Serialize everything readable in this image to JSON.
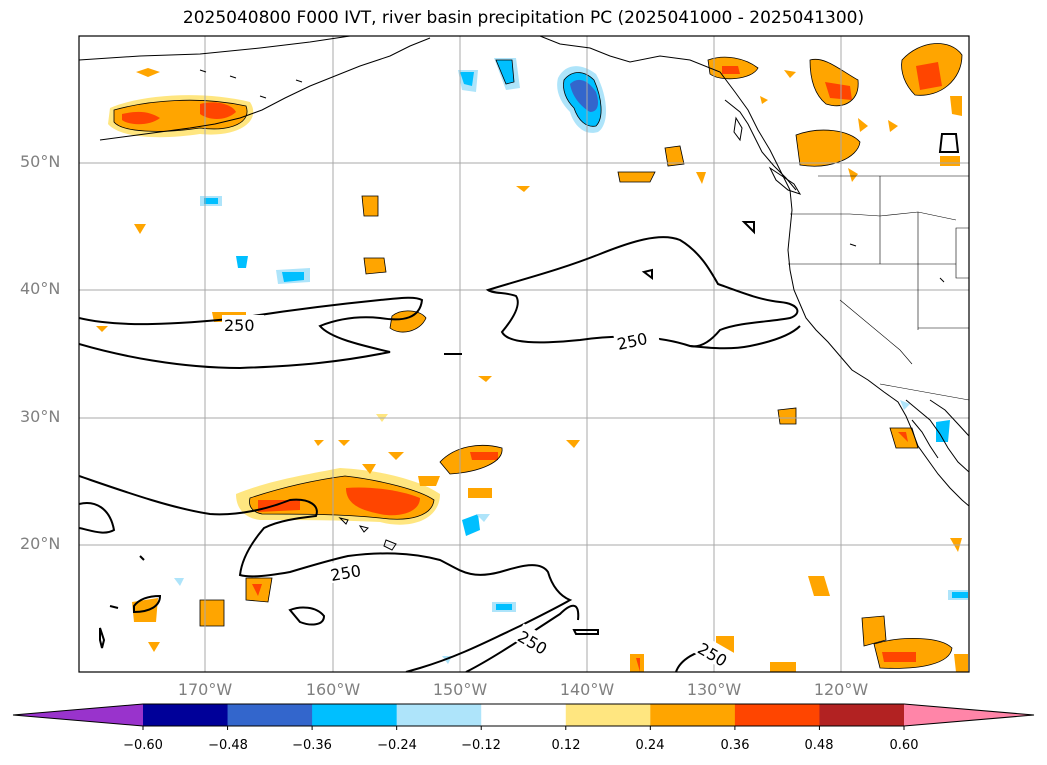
{
  "title": "2025040800 F000 IVT, river basin precipitation PC (2025041000 - 2025041300)",
  "lat_labels": [
    "50°N",
    "40°N",
    "30°N",
    "20°N"
  ],
  "lon_labels": [
    "170°W",
    "160°W",
    "150°W",
    "140°W",
    "130°W",
    "120°W"
  ],
  "contour": {
    "value": 250,
    "label": "250"
  },
  "colorbar": {
    "ticks": [
      "−0.60",
      "−0.48",
      "−0.36",
      "−0.24",
      "−0.12",
      "0.12",
      "0.24",
      "0.36",
      "0.48",
      "0.60"
    ],
    "colors": [
      "#9933cc",
      "#000099",
      "#3366cc",
      "#00bfff",
      "#aee4fa",
      "#ffffff",
      "#ffe680",
      "#ffa500",
      "#ff4500",
      "#b22222",
      "#ff85a8"
    ]
  },
  "map_extent": {
    "lon": [
      -180,
      -110
    ],
    "lat": [
      10,
      60
    ]
  }
}
